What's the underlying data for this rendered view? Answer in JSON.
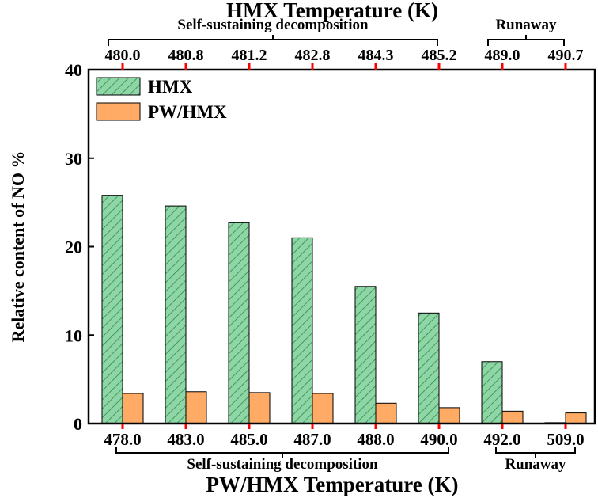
{
  "chart_data": {
    "type": "bar",
    "title": "",
    "ylabel": "Relative content of NO %",
    "ylim": [
      0,
      40
    ],
    "yticks": [
      0,
      10,
      20,
      30,
      40
    ],
    "x_bottom": {
      "label": "PW/HMX Temperature (K)",
      "tick_labels": [
        "478.0",
        "483.0",
        "485.0",
        "487.0",
        "488.0",
        "490.0",
        "492.0",
        "509.0"
      ],
      "annotations": [
        {
          "text": "Self-sustaining decomposition",
          "from": 0,
          "to": 5
        },
        {
          "text": "Runaway",
          "from": 6,
          "to": 7
        }
      ]
    },
    "x_top": {
      "label": "HMX Temperature (K)",
      "tick_labels": [
        "480.0",
        "480.8",
        "481.2",
        "482.8",
        "484.3",
        "485.2",
        "489.0",
        "490.7"
      ],
      "annotations": [
        {
          "text": "Self-sustaining decomposition",
          "from": 0,
          "to": 5
        },
        {
          "text": "Runaway",
          "from": 6,
          "to": 7
        }
      ]
    },
    "legend_position": "top-left",
    "series": [
      {
        "name": "HMX",
        "color": "#8fd6a6",
        "pattern": "diagonal-hatch",
        "values": [
          25.8,
          24.6,
          22.7,
          21.0,
          15.5,
          12.5,
          7.0,
          0.1
        ]
      },
      {
        "name": "PW/HMX",
        "color": "#ffab66",
        "pattern": "solid",
        "values": [
          3.4,
          3.6,
          3.5,
          3.4,
          2.3,
          1.8,
          1.4,
          1.2
        ]
      }
    ],
    "tick_marker_color": "#ff0000"
  }
}
